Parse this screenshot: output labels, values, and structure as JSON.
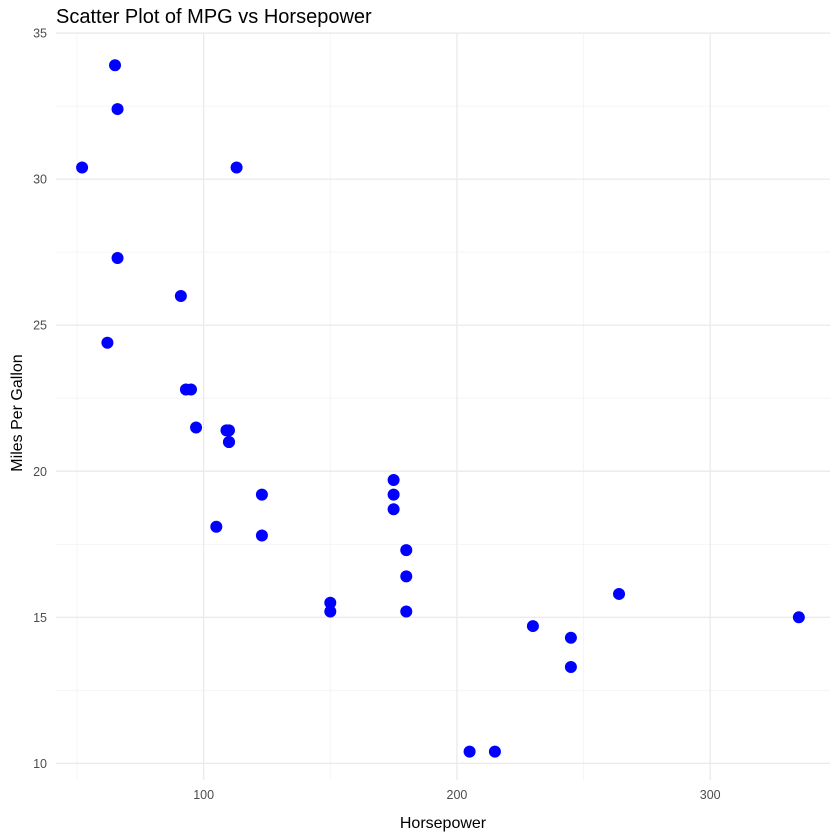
{
  "chart_data": {
    "type": "scatter",
    "title": "Scatter Plot of MPG vs Horsepower",
    "xlabel": "Horsepower",
    "ylabel": "Miles Per Gallon",
    "xlim": [
      41.7,
      347.3
    ],
    "ylim": [
      9.43,
      34.97
    ],
    "x_ticks": [
      100,
      200,
      300
    ],
    "y_ticks": [
      10,
      15,
      20,
      25,
      30,
      35
    ],
    "grid": true,
    "point_color": "#0000ff",
    "points": [
      {
        "x": 110,
        "y": 21.0
      },
      {
        "x": 110,
        "y": 21.0
      },
      {
        "x": 93,
        "y": 22.8
      },
      {
        "x": 110,
        "y": 21.4
      },
      {
        "x": 175,
        "y": 18.7
      },
      {
        "x": 105,
        "y": 18.1
      },
      {
        "x": 245,
        "y": 14.3
      },
      {
        "x": 62,
        "y": 24.4
      },
      {
        "x": 95,
        "y": 22.8
      },
      {
        "x": 123,
        "y": 19.2
      },
      {
        "x": 123,
        "y": 17.8
      },
      {
        "x": 180,
        "y": 16.4
      },
      {
        "x": 180,
        "y": 17.3
      },
      {
        "x": 180,
        "y": 15.2
      },
      {
        "x": 205,
        "y": 10.4
      },
      {
        "x": 215,
        "y": 10.4
      },
      {
        "x": 230,
        "y": 14.7
      },
      {
        "x": 66,
        "y": 32.4
      },
      {
        "x": 52,
        "y": 30.4
      },
      {
        "x": 65,
        "y": 33.9
      },
      {
        "x": 97,
        "y": 21.5
      },
      {
        "x": 150,
        "y": 15.5
      },
      {
        "x": 150,
        "y": 15.2
      },
      {
        "x": 245,
        "y": 13.3
      },
      {
        "x": 175,
        "y": 19.2
      },
      {
        "x": 66,
        "y": 27.3
      },
      {
        "x": 91,
        "y": 26.0
      },
      {
        "x": 113,
        "y": 30.4
      },
      {
        "x": 264,
        "y": 15.8
      },
      {
        "x": 175,
        "y": 19.7
      },
      {
        "x": 335,
        "y": 15.0
      },
      {
        "x": 109,
        "y": 21.4
      }
    ]
  }
}
